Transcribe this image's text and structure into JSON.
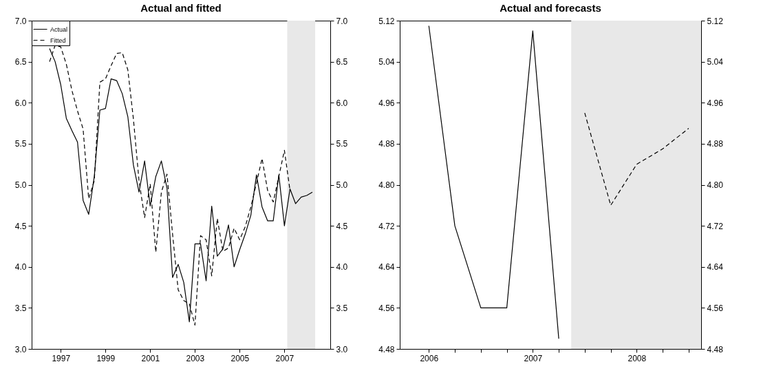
{
  "chart_data": [
    {
      "type": "line",
      "title": "Actual and fitted",
      "x": [
        1997,
        1997.25,
        1997.5,
        1997.75,
        1998,
        1998.25,
        1998.5,
        1998.75,
        1999,
        1999.25,
        1999.5,
        1999.75,
        2000,
        2000.25,
        2000.5,
        2000.75,
        2001,
        2001.25,
        2001.5,
        2001.75,
        2002,
        2002.25,
        2002.5,
        2002.75,
        2003,
        2003.25,
        2003.5,
        2003.75,
        2004,
        2004.25,
        2004.5,
        2004.75,
        2005,
        2005.25,
        2005.5,
        2005.75,
        2006,
        2006.25,
        2006.5,
        2006.75,
        2007,
        2007.25,
        2007.5,
        2007.75,
        2008,
        2008.25,
        2008.5,
        2008.75
      ],
      "series": [
        {
          "name": "Actual",
          "color": "#000000",
          "line_style": "solid",
          "values": [
            6.66,
            6.5,
            6.22,
            5.81,
            5.66,
            5.52,
            4.81,
            4.64,
            5.1,
            5.91,
            5.93,
            6.29,
            6.27,
            6.11,
            5.83,
            5.24,
            4.91,
            5.29,
            4.74,
            5.1,
            5.29,
            4.96,
            3.87,
            4.03,
            3.81,
            3.33,
            4.28,
            4.28,
            3.83,
            4.74,
            4.13,
            4.22,
            4.51,
            4.0,
            4.21,
            4.4,
            4.63,
            5.12,
            4.73,
            4.56,
            4.56,
            5.12,
            4.5,
            4.95,
            4.77,
            4.85,
            4.87,
            4.91
          ]
        },
        {
          "name": "Fitted",
          "color": "#000000",
          "line_style": "dashed",
          "axis": "y2",
          "values": [
            6.5,
            6.7,
            6.68,
            6.47,
            6.15,
            5.9,
            5.68,
            4.83,
            5.05,
            6.25,
            6.29,
            6.45,
            6.6,
            6.61,
            6.4,
            5.8,
            5.05,
            4.6,
            5.01,
            4.18,
            4.91,
            5.13,
            4.4,
            3.72,
            3.59,
            3.55,
            3.29,
            4.38,
            4.33,
            3.89,
            4.59,
            4.19,
            4.23,
            4.47,
            4.33,
            4.49,
            4.73,
            5.02,
            5.32,
            4.93,
            4.79,
            5.1,
            5.42,
            4.93,
            null,
            null,
            null,
            null
          ]
        }
      ],
      "xlim": [
        1996.2,
        2009.55
      ],
      "xticks": [
        {
          "value": 1997.5,
          "label": "1997"
        },
        {
          "value": 1999.5,
          "label": "1999"
        },
        {
          "value": 2001.5,
          "label": "2001"
        },
        {
          "value": 2003.5,
          "label": "2003"
        },
        {
          "value": 2005.5,
          "label": "2005"
        },
        {
          "value": 2007.5,
          "label": "2007"
        }
      ],
      "ylim": [
        3,
        7
      ],
      "yticks": [
        {
          "value": 3,
          "label": "3.0"
        },
        {
          "value": 3.5,
          "label": "3.5"
        },
        {
          "value": 4,
          "label": "4.0"
        },
        {
          "value": 4.5,
          "label": "4.5"
        },
        {
          "value": 5,
          "label": "5.0"
        },
        {
          "value": 5.5,
          "label": "5.5"
        },
        {
          "value": 6,
          "label": "6.0"
        },
        {
          "value": 6.5,
          "label": "6.5"
        },
        {
          "value": 7,
          "label": "7.0"
        }
      ],
      "y2lim": [
        3,
        7
      ],
      "y2ticks": [
        {
          "value": 3,
          "label": "3.0"
        },
        {
          "value": 3.5,
          "label": "3.5"
        },
        {
          "value": 4,
          "label": "4.0"
        },
        {
          "value": 4.5,
          "label": "4.5"
        },
        {
          "value": 5,
          "label": "5.0"
        },
        {
          "value": 5.5,
          "label": "5.5"
        },
        {
          "value": 6,
          "label": "6.0"
        },
        {
          "value": 6.5,
          "label": "6.5"
        },
        {
          "value": 7,
          "label": "7.0"
        }
      ],
      "bands": [
        {
          "axis": "x",
          "from": 2007.625,
          "to": 2008.875,
          "color": "#e8e8e8"
        }
      ],
      "legend": "top left"
    },
    {
      "type": "line",
      "title": "Actual and forecasts",
      "series": [
        {
          "color": "#000000",
          "line_style": "solid",
          "x": [
            2006,
            2006.25,
            2006.5,
            2006.75,
            2007,
            2007.25
          ],
          "values": [
            5.11,
            4.72,
            4.56,
            4.56,
            5.1,
            4.5
          ]
        },
        {
          "color": "#000000",
          "line_style": "dashed",
          "axis": "y2",
          "x": [
            2007.5,
            2007.75,
            2008,
            2008.25,
            2008.5
          ],
          "values": [
            4.94,
            4.76,
            4.84,
            4.87,
            4.91
          ]
        }
      ],
      "xlim": [
        2005.72,
        2008.62
      ],
      "xticks": [
        2006,
        {
          "value": 2006.25,
          "label": null
        },
        {
          "value": 2006.5,
          "label": null
        },
        {
          "value": 2006.75,
          "label": null
        },
        2007,
        {
          "value": 2007.25,
          "label": null
        },
        {
          "value": 2007.5,
          "label": null
        },
        {
          "value": 2007.75,
          "label": null
        },
        2008,
        {
          "value": 2008.25,
          "label": null
        },
        {
          "value": 2008.5,
          "label": null
        }
      ],
      "ylim": [
        4.48,
        5.12
      ],
      "yticks": [
        {
          "value": 4.48,
          "label": "4.48"
        },
        {
          "value": 4.56,
          "label": "4.56"
        },
        {
          "value": 4.64,
          "label": "4.64"
        },
        {
          "value": 4.72,
          "label": "4.72"
        },
        {
          "value": 4.8,
          "label": "4.80"
        },
        {
          "value": 4.88,
          "label": "4.88"
        },
        {
          "value": 4.96,
          "label": "4.96"
        },
        {
          "value": 5.04,
          "label": "5.04"
        },
        {
          "value": 5.12,
          "label": "5.12"
        }
      ],
      "y2lim": [
        4.48,
        5.12
      ],
      "y2ticks": [
        {
          "value": 4.48,
          "label": "4.48"
        },
        {
          "value": 4.56,
          "label": "4.56"
        },
        {
          "value": 4.64,
          "label": "4.64"
        },
        {
          "value": 4.72,
          "label": "4.72"
        },
        {
          "value": 4.8,
          "label": "4.80"
        },
        {
          "value": 4.88,
          "label": "4.88"
        },
        {
          "value": 4.96,
          "label": "4.96"
        },
        {
          "value": 5.04,
          "label": "5.04"
        },
        {
          "value": 5.12,
          "label": "5.12"
        }
      ],
      "bands": [
        {
          "axis": "x",
          "from": 2007.37,
          "to": 2008.62,
          "color": "#e8e8e8"
        }
      ]
    }
  ]
}
